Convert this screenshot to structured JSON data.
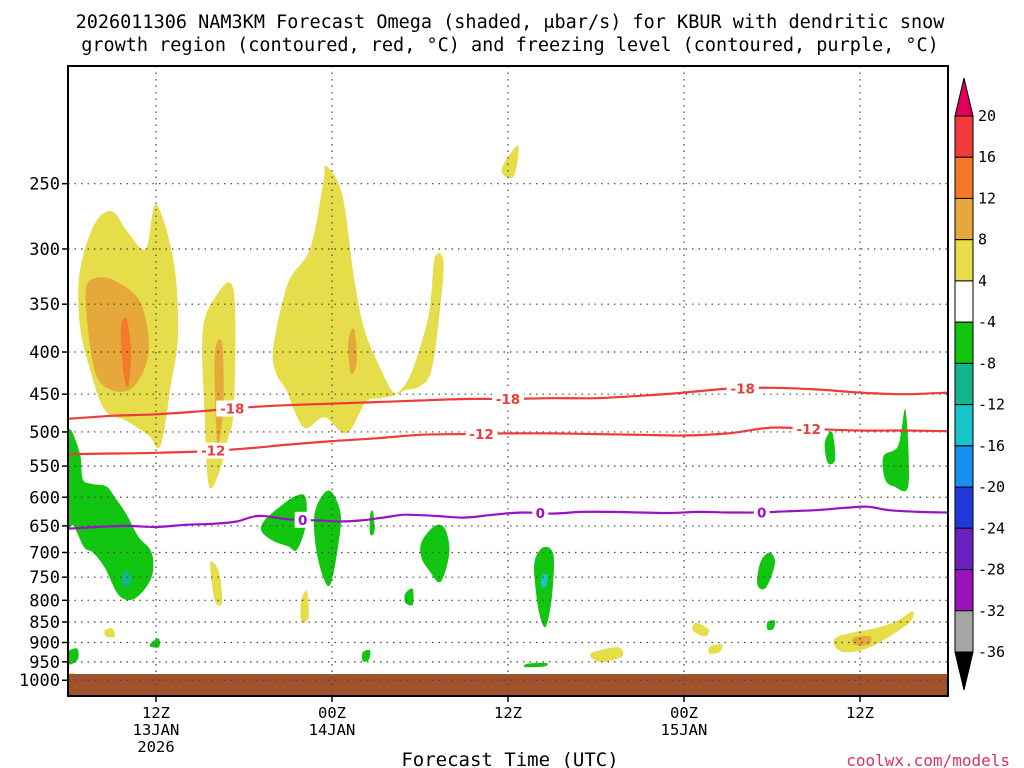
{
  "chart_data": {
    "type": "heatmap",
    "title_line1": "2026011306 NAM3KM Forecast Omega (shaded, μbar/s) for KBUR with dendritic snow",
    "title_line2": "growth region (contoured, red, °C) and freezing level (contoured, purple, °C)",
    "xlabel": "Forecast Time (UTC)",
    "ylabel": "",
    "watermark": "coolwx.com/models",
    "x_range_hours": [
      0,
      60
    ],
    "x_ticks": [
      {
        "hour": 6,
        "line1": "12Z",
        "line2": "13JAN",
        "line3": "2026"
      },
      {
        "hour": 18,
        "line1": "00Z",
        "line2": "14JAN",
        "line3": ""
      },
      {
        "hour": 30,
        "line1": "12Z",
        "line2": "",
        "line3": ""
      },
      {
        "hour": 42,
        "line1": "00Z",
        "line2": "15JAN",
        "line3": ""
      },
      {
        "hour": 54,
        "line1": "12Z",
        "line2": "",
        "line3": ""
      }
    ],
    "y_range_hPa": [
      1045,
      180
    ],
    "y_ticks": [
      "250",
      "300",
      "350",
      "400",
      "450",
      "500",
      "550",
      "600",
      "650",
      "700",
      "750",
      "800",
      "850",
      "900",
      "950",
      "1000"
    ],
    "colorbar": {
      "labels": [
        "20",
        "16",
        "12",
        "8",
        "4",
        "-4",
        "-8",
        "-12",
        "-16",
        "-20",
        "-24",
        "-28",
        "-32",
        "-36"
      ],
      "bins": [
        {
          "color": "#e0005b"
        },
        {
          "color": "#f03c3c"
        },
        {
          "color": "#f27a28"
        },
        {
          "color": "#e6a83a"
        },
        {
          "color": "#e6dd4a"
        },
        {
          "color": "#ffffff"
        },
        {
          "color": "#11c511"
        },
        {
          "color": "#14b48c"
        },
        {
          "color": "#17c4c8"
        },
        {
          "color": "#1a8ff2"
        },
        {
          "color": "#1f3ad9"
        },
        {
          "color": "#6a1fbf"
        },
        {
          "color": "#9a12b9"
        },
        {
          "color": "#a6a6a6"
        },
        {
          "color": "#000000"
        }
      ]
    },
    "omega_regions": [
      {
        "level": 4,
        "t": [
          0.8,
          1.8,
          3.0,
          4.0,
          5.3,
          6.0,
          7.2,
          7.5,
          7.0,
          6.3,
          5.5,
          4.0,
          2.5,
          1.5,
          0.8
        ],
        "p": [
          320,
          280,
          270,
          285,
          300,
          265,
          310,
          380,
          440,
          520,
          505,
          485,
          470,
          420,
          370
        ]
      },
      {
        "level": 8,
        "t": [
          1.2,
          2.0,
          3.5,
          5.0,
          5.5,
          4.5,
          3.0,
          1.8
        ],
        "p": [
          340,
          325,
          330,
          350,
          400,
          440,
          445,
          420
        ]
      },
      {
        "level": 12,
        "t": [
          3.6,
          4.0,
          4.3,
          4.1,
          3.8
        ],
        "p": [
          375,
          365,
          400,
          440,
          425
        ]
      },
      {
        "level": 4,
        "t": [
          9.2,
          10.2,
          11.1,
          11.4,
          11.3,
          10.9,
          10.3,
          9.6,
          9.3
        ],
        "p": [
          375,
          340,
          330,
          360,
          470,
          510,
          560,
          580,
          470
        ]
      },
      {
        "level": 8,
        "t": [
          10.0,
          10.5,
          10.6,
          10.2
        ],
        "p": [
          405,
          390,
          460,
          520
        ]
      },
      {
        "level": 4,
        "t": [
          9.7,
          10.3,
          10.5,
          10.0
        ],
        "p": [
          720,
          740,
          805,
          800
        ]
      },
      {
        "level": 4,
        "t": [
          14.0,
          15.0,
          16.5,
          17.4,
          17.6,
          18.7,
          19.5,
          20.2,
          21.2,
          22.2,
          23.0,
          24.0,
          24.8,
          25.4,
          25.6,
          25.0,
          24.6,
          23.5,
          22.5,
          21.3,
          20.3,
          19.0,
          17.5,
          16.2,
          15.4,
          14.9,
          14.2
        ],
        "p": [
          395,
          330,
          300,
          250,
          238,
          258,
          325,
          375,
          415,
          448,
          445,
          440,
          420,
          350,
          310,
          308,
          360,
          420,
          448,
          455,
          460,
          502,
          480,
          495,
          470,
          445,
          425
        ]
      },
      {
        "level": 8,
        "t": [
          19.1,
          19.5,
          19.7,
          19.3
        ],
        "p": [
          390,
          375,
          410,
          425
        ]
      },
      {
        "level": 4,
        "t": [
          29.8,
          30.7,
          30.4,
          29.6
        ],
        "p": [
          235,
          225,
          245,
          243
        ]
      },
      {
        "level": 4,
        "t": [
          3.6,
          5.5,
          7.0,
          8.0,
          7.2,
          5.5,
          4.0
        ],
        "p": [
          995,
          985,
          985,
          992,
          1002,
          1007,
          1002
        ]
      },
      {
        "level": 8,
        "t": [
          4.8,
          6.2,
          7.0,
          6.0
        ],
        "p": [
          990,
          988,
          995,
          1002
        ]
      },
      {
        "level": 4,
        "t": [
          24.0,
          27.0,
          32.0,
          32.5,
          28.0,
          25.0
        ],
        "p": [
          993,
          990,
          995,
          1003,
          1008,
          1005
        ]
      },
      {
        "level": 4,
        "t": [
          52.5,
          55.0,
          56.5,
          57.6,
          57.4,
          56.0,
          54.5,
          53.0,
          52.3
        ],
        "p": [
          885,
          865,
          848,
          825,
          850,
          885,
          915,
          925,
          910
        ]
      },
      {
        "level": 8,
        "t": [
          53.6,
          54.7,
          54.6,
          53.6
        ],
        "p": [
          888,
          885,
          905,
          905
        ]
      },
      {
        "level": 4,
        "t": [
          35.8,
          37.5,
          37.8,
          36.5,
          35.7
        ],
        "p": [
          925,
          912,
          935,
          950,
          940
        ]
      },
      {
        "level": 4,
        "t": [
          0.0,
          0.4,
          0.6,
          0.0
        ],
        "p": [
          985,
          980,
          1000,
          1003
        ]
      },
      {
        "level": 4,
        "t": [
          15.9,
          16.3,
          16.4,
          15.9
        ],
        "p": [
          800,
          780,
          840,
          848
        ]
      },
      {
        "level": 4,
        "t": [
          42.8,
          43.7,
          43.4,
          42.6
        ],
        "p": [
          852,
          868,
          885,
          870
        ]
      },
      {
        "level": 4,
        "t": [
          43.8,
          44.6,
          44.4,
          43.7
        ],
        "p": [
          910,
          905,
          925,
          928
        ]
      },
      {
        "level": 4,
        "t": [
          43.6,
          46.2,
          45.5,
          43.5
        ],
        "p": [
          992,
          992,
          1002,
          1000
        ]
      },
      {
        "level": 4,
        "t": [
          2.5,
          3.0,
          3.2,
          2.6
        ],
        "p": [
          870,
          865,
          885,
          885
        ]
      },
      {
        "level": -4,
        "t": [
          0.0,
          0.8,
          1.0,
          1.6,
          2.6,
          3.2,
          4.0,
          4.8,
          5.7,
          5.7,
          4.6,
          3.5,
          2.5,
          1.7,
          1.1,
          0.4,
          0.0
        ],
        "p": [
          500,
          530,
          570,
          578,
          582,
          600,
          630,
          670,
          700,
          750,
          795,
          790,
          730,
          700,
          690,
          650,
          640
        ]
      },
      {
        "level": -8,
        "t": [
          3.8,
          4.3,
          4.1,
          3.7
        ],
        "p": [
          738,
          748,
          770,
          762
        ]
      },
      {
        "level": -4,
        "t": [
          13.4,
          14.5,
          15.5,
          16.2,
          16.2,
          15.6,
          15.0,
          14.0,
          13.2
        ],
        "p": [
          640,
          615,
          598,
          600,
          650,
          695,
          688,
          678,
          660
        ]
      },
      {
        "level": -4,
        "t": [
          16.8,
          17.4,
          18.0,
          18.6,
          18.4,
          17.9,
          17.4,
          16.9
        ],
        "p": [
          630,
          595,
          592,
          630,
          690,
          765,
          750,
          690
        ]
      },
      {
        "level": -4,
        "t": [
          20.6,
          20.8,
          20.9,
          20.6
        ],
        "p": [
          630,
          625,
          660,
          665
        ]
      },
      {
        "level": -4,
        "t": [
          24.1,
          25.0,
          25.7,
          26.0,
          25.4,
          24.6,
          24.1
        ],
        "p": [
          680,
          650,
          655,
          700,
          760,
          735,
          710
        ]
      },
      {
        "level": -4,
        "t": [
          23.0,
          23.5,
          23.5,
          23.0
        ],
        "p": [
          785,
          775,
          810,
          805
        ]
      },
      {
        "level": -4,
        "t": [
          31.8,
          32.4,
          33.1,
          33.0,
          32.6,
          32.2,
          31.9
        ],
        "p": [
          720,
          690,
          705,
          790,
          860,
          840,
          780
        ]
      },
      {
        "level": -12,
        "t": [
          32.3,
          32.7,
          32.6,
          32.3
        ],
        "p": [
          748,
          745,
          768,
          772
        ]
      },
      {
        "level": -4,
        "t": [
          47.2,
          47.8,
          48.2,
          48.0,
          47.5,
          47.0
        ],
        "p": [
          720,
          700,
          715,
          745,
          775,
          765
        ]
      },
      {
        "level": -4,
        "t": [
          55.6,
          56.6,
          57.1,
          57.3,
          56.3,
          55.7
        ],
        "p": [
          535,
          520,
          470,
          580,
          582,
          570
        ]
      },
      {
        "level": -4,
        "t": [
          51.6,
          52.1,
          52.3,
          51.8
        ],
        "p": [
          515,
          500,
          540,
          545
        ]
      },
      {
        "level": -4,
        "t": [
          -0.2,
          0.6,
          0.7,
          0.3,
          -0.2
        ],
        "p": [
          928,
          915,
          940,
          955,
          955
        ]
      },
      {
        "level": -4,
        "t": [
          5.7,
          6.2,
          6.2,
          5.6
        ],
        "p": [
          900,
          890,
          912,
          910
        ]
      },
      {
        "level": -4,
        "t": [
          20.1,
          20.6,
          20.5,
          20.1
        ],
        "p": [
          925,
          920,
          945,
          948
        ]
      },
      {
        "level": -4,
        "t": [
          31.3,
          32.6,
          32.5,
          31.2
        ],
        "p": [
          955,
          953,
          962,
          964
        ]
      },
      {
        "level": -4,
        "t": [
          47.7,
          48.2,
          48.1,
          47.7
        ],
        "p": [
          850,
          847,
          866,
          868
        ]
      }
    ],
    "dendritic_contours": [
      {
        "value": "-18",
        "label_hours": [
          11.2,
          30.0,
          46.0
        ],
        "t": [
          0,
          3,
          6,
          9,
          12,
          15,
          18,
          21,
          24,
          27,
          30,
          33,
          36,
          39,
          42,
          45,
          48,
          51,
          54,
          57,
          60
        ],
        "p": [
          482,
          478,
          476,
          472,
          467,
          464,
          462,
          460,
          458,
          456,
          456,
          455,
          455,
          452,
          448,
          443,
          442,
          444,
          448,
          450,
          448
        ]
      },
      {
        "value": "-12",
        "label_hours": [
          9.9,
          28.2,
          50.5
        ],
        "t": [
          0,
          3,
          6,
          9,
          12,
          15,
          18,
          21,
          24,
          27,
          30,
          33,
          36,
          39,
          42,
          45,
          48,
          51,
          54,
          57,
          60
        ],
        "p": [
          532,
          531,
          530,
          528,
          524,
          518,
          513,
          509,
          504,
          503,
          502,
          502,
          503,
          504,
          505,
          502,
          494,
          496,
          498,
          498,
          499
        ]
      }
    ],
    "freezing_contour": {
      "value": "0",
      "label_hours": [
        16.0,
        32.2,
        47.3
      ],
      "t": [
        0,
        2,
        4,
        6,
        8,
        10,
        11.5,
        13,
        15,
        17,
        18.5,
        20,
        21.5,
        23,
        25,
        27,
        29,
        31,
        33,
        35,
        37,
        39,
        41,
        43,
        45,
        47,
        49,
        51,
        53,
        54.5,
        56,
        58,
        60
      ],
      "p": [
        655,
        652,
        650,
        652,
        648,
        646,
        642,
        632,
        638,
        640,
        642,
        640,
        635,
        630,
        632,
        635,
        630,
        626,
        628,
        625,
        625,
        626,
        627,
        625,
        626,
        626,
        624,
        622,
        618,
        616,
        622,
        625,
        626
      ]
    },
    "ground_band_hPa": [
      1013,
      1045
    ]
  }
}
